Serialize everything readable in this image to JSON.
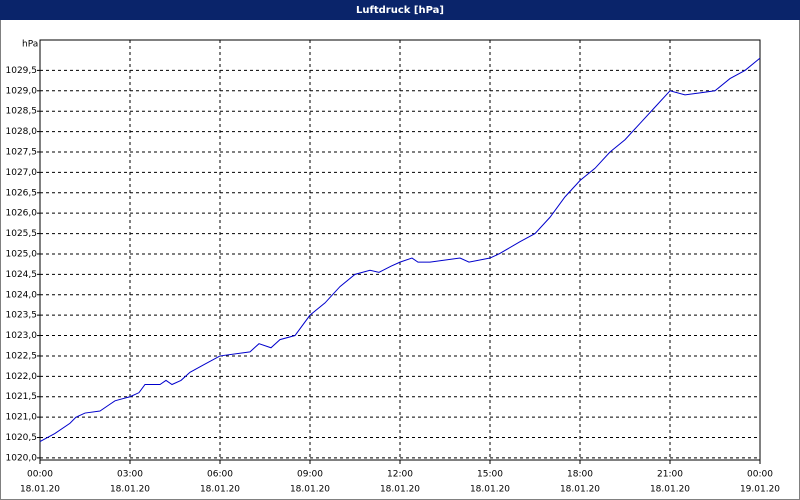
{
  "chart_data": {
    "type": "line",
    "title": "Luftdruck [hPa]",
    "y_label": "hPa",
    "color": "#0000cc",
    "grid": true,
    "x": [
      0,
      0.5,
      1.0,
      1.2,
      1.5,
      2.0,
      2.3,
      2.5,
      3.0,
      3.3,
      3.5,
      4.0,
      4.2,
      4.4,
      4.7,
      5.0,
      5.5,
      6.0,
      7.0,
      7.3,
      7.7,
      8.0,
      8.5,
      9.0,
      9.5,
      10.0,
      10.5,
      11.0,
      11.3,
      11.7,
      12.0,
      12.4,
      12.6,
      13.0,
      14.0,
      14.3,
      15.0,
      15.3,
      16.0,
      16.5,
      17.0,
      17.5,
      18.0,
      18.5,
      19.0,
      19.5,
      20.0,
      20.5,
      21.0,
      21.5,
      22.0,
      22.5,
      23.0,
      23.5,
      24.0
    ],
    "values": [
      1020.4,
      1020.6,
      1020.85,
      1021.0,
      1021.1,
      1021.15,
      1021.3,
      1021.4,
      1021.5,
      1021.6,
      1021.8,
      1021.8,
      1021.9,
      1021.8,
      1021.9,
      1022.1,
      1022.3,
      1022.5,
      1022.6,
      1022.8,
      1022.7,
      1022.9,
      1023.0,
      1023.5,
      1023.8,
      1024.2,
      1024.5,
      1024.6,
      1024.55,
      1024.7,
      1024.8,
      1024.9,
      1024.8,
      1024.8,
      1024.9,
      1024.8,
      1024.9,
      1025.0,
      1025.3,
      1025.5,
      1025.9,
      1026.4,
      1026.8,
      1027.1,
      1027.5,
      1027.8,
      1028.2,
      1028.6,
      1029.0,
      1028.9,
      1028.95,
      1029.0,
      1029.3,
      1029.5,
      1029.8
    ],
    "xlim": [
      0,
      24
    ],
    "xticks": [
      {
        "value": 0,
        "label": "00:00",
        "date": "18.01.20"
      },
      {
        "value": 3,
        "label": "03:00",
        "date": "18.01.20"
      },
      {
        "value": 6,
        "label": "06:00",
        "date": "18.01.20"
      },
      {
        "value": 9,
        "label": "09:00",
        "date": "18.01.20"
      },
      {
        "value": 12,
        "label": "12:00",
        "date": "18.01.20"
      },
      {
        "value": 15,
        "label": "15:00",
        "date": "18.01.20"
      },
      {
        "value": 18,
        "label": "18:00",
        "date": "18.01.20"
      },
      {
        "value": 21,
        "label": "21:00",
        "date": "18.01.20"
      },
      {
        "value": 24,
        "label": "00:00",
        "date": "19.01.20"
      }
    ],
    "ylim": [
      1019.9,
      1030.0
    ],
    "yticks": [
      {
        "value": 1020.0,
        "label": "1020,0"
      },
      {
        "value": 1020.5,
        "label": "1020,5"
      },
      {
        "value": 1021.0,
        "label": "1021,0"
      },
      {
        "value": 1021.5,
        "label": "1021,5"
      },
      {
        "value": 1022.0,
        "label": "1022,0"
      },
      {
        "value": 1022.5,
        "label": "1022,5"
      },
      {
        "value": 1023.0,
        "label": "1023,0"
      },
      {
        "value": 1023.5,
        "label": "1023,5"
      },
      {
        "value": 1024.0,
        "label": "1024,0"
      },
      {
        "value": 1024.5,
        "label": "1024,5"
      },
      {
        "value": 1025.0,
        "label": "1025,0"
      },
      {
        "value": 1025.5,
        "label": "1025,5"
      },
      {
        "value": 1026.0,
        "label": "1026,0"
      },
      {
        "value": 1026.5,
        "label": "1026,5"
      },
      {
        "value": 1027.0,
        "label": "1027,0"
      },
      {
        "value": 1027.5,
        "label": "1027,5"
      },
      {
        "value": 1028.0,
        "label": "1028,0"
      },
      {
        "value": 1028.5,
        "label": "1028,5"
      },
      {
        "value": 1029.0,
        "label": "1029,0"
      },
      {
        "value": 1029.5,
        "label": "1029,5"
      }
    ]
  }
}
